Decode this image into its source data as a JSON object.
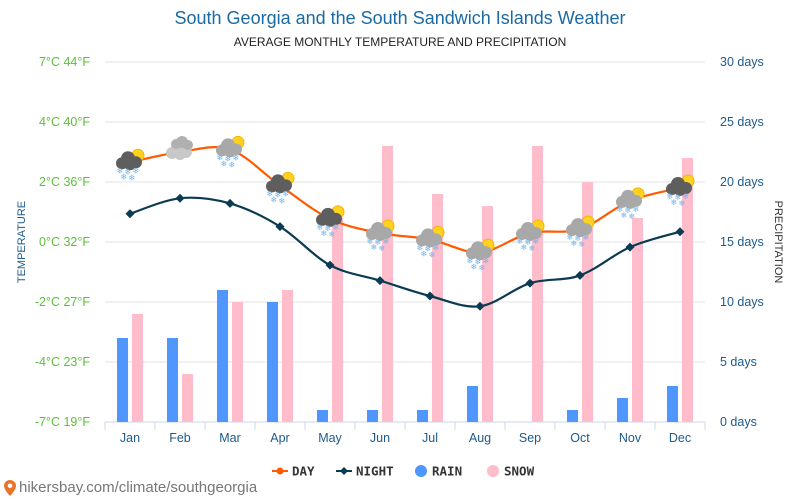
{
  "chart_data": {
    "type": "line+bar",
    "title": "South Georgia and the South Sandwich Islands Weather",
    "subtitle": "AVERAGE MONTHLY TEMPERATURE AND PRECIPITATION",
    "ylabel_left": "TEMPERATURE",
    "ylabel_right": "PRECIPITATION",
    "categories": [
      "Jan",
      "Feb",
      "Mar",
      "Apr",
      "May",
      "Jun",
      "Jul",
      "Aug",
      "Sep",
      "Oct",
      "Nov",
      "Dec"
    ],
    "left_ticks": [
      "7°C 44°F",
      "4°C 40°F",
      "2°C 36°F",
      "0°C 32°F",
      "-2°C 27°F",
      "-4°C 23°F",
      "-7°C 19°F"
    ],
    "right_ticks": [
      "30 days",
      "25 days",
      "20 days",
      "15 days",
      "10 days",
      "5 days",
      "0 days"
    ],
    "ylim_left_c": [
      -7,
      7
    ],
    "ylim_right_days": [
      0,
      30
    ],
    "grid": true,
    "legend_position": "bottom",
    "series": [
      {
        "name": "DAY",
        "type": "line",
        "unit": "°C",
        "color": "#ff5a00",
        "values": [
          3.1,
          3.5,
          3.6,
          2.2,
          0.9,
          0.35,
          0.1,
          -0.4,
          0.35,
          0.5,
          1.6,
          2.1
        ]
      },
      {
        "name": "NIGHT",
        "type": "line",
        "unit": "°C",
        "color": "#0b3b52",
        "values": [
          1.1,
          1.7,
          1.5,
          0.6,
          -0.9,
          -1.5,
          -2.1,
          -2.5,
          -1.6,
          -1.3,
          -0.2,
          0.4
        ]
      },
      {
        "name": "RAIN",
        "type": "bar",
        "unit": "days",
        "color": "#5096ff",
        "values": [
          7,
          7,
          11,
          10,
          1,
          1,
          1,
          3,
          0,
          1,
          2,
          3
        ]
      },
      {
        "name": "SNOW",
        "type": "bar",
        "unit": "days",
        "color": "#ffbccb",
        "values": [
          9,
          4,
          10,
          11,
          17,
          23,
          19,
          18,
          23,
          20,
          17,
          22
        ]
      }
    ],
    "weather_icons": [
      "snow-sun-dark",
      "cloudy",
      "snow-sun",
      "snow-sun-dark",
      "snow-sun-dark",
      "snow-sun",
      "snow-sun",
      "snow-sun",
      "snow-sun",
      "snow-sun",
      "snow-sun",
      "snow-sun-dark"
    ]
  },
  "footer": {
    "text": "hikersbay.com/climate/southgeorgia",
    "icon": "location-pin-icon"
  },
  "colors": {
    "left_axis": "#5cbf3a",
    "right_axis": "#1d5a8b",
    "title": "#1a6aa5"
  }
}
